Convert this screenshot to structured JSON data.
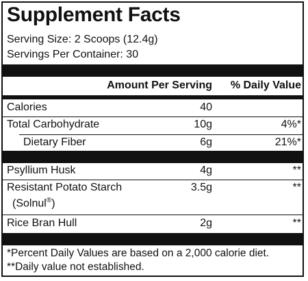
{
  "title": "Supplement Facts",
  "serving_size": "Serving Size: 2 Scoops (12.4g)",
  "servings_per_container": "Servings Per Container: 30",
  "columns": {
    "amount": "Amount Per Serving",
    "daily_value": "% Daily Value"
  },
  "rows": [
    {
      "name": "Calories",
      "amount": "40",
      "dv": ""
    },
    {
      "name": "Total Carbohydrate",
      "amount": "10g",
      "dv": "4%*"
    },
    {
      "name": "Dietary Fiber",
      "amount": "6g",
      "dv": "21%*"
    },
    {
      "name": "Psyllium Husk",
      "amount": "4g",
      "dv": "**"
    },
    {
      "name": "Resistant Potato Starch",
      "name_line2": "(Solnul",
      "reg_mark": "®",
      "name_line2_end": ")",
      "amount": "3.5g",
      "dv": "**"
    },
    {
      "name": "Rice Bran Hull",
      "amount": "2g",
      "dv": "**"
    }
  ],
  "footnotes": [
    "*Percent Daily Values are based on a 2,000 calorie diet.",
    "**Daily value not established."
  ]
}
